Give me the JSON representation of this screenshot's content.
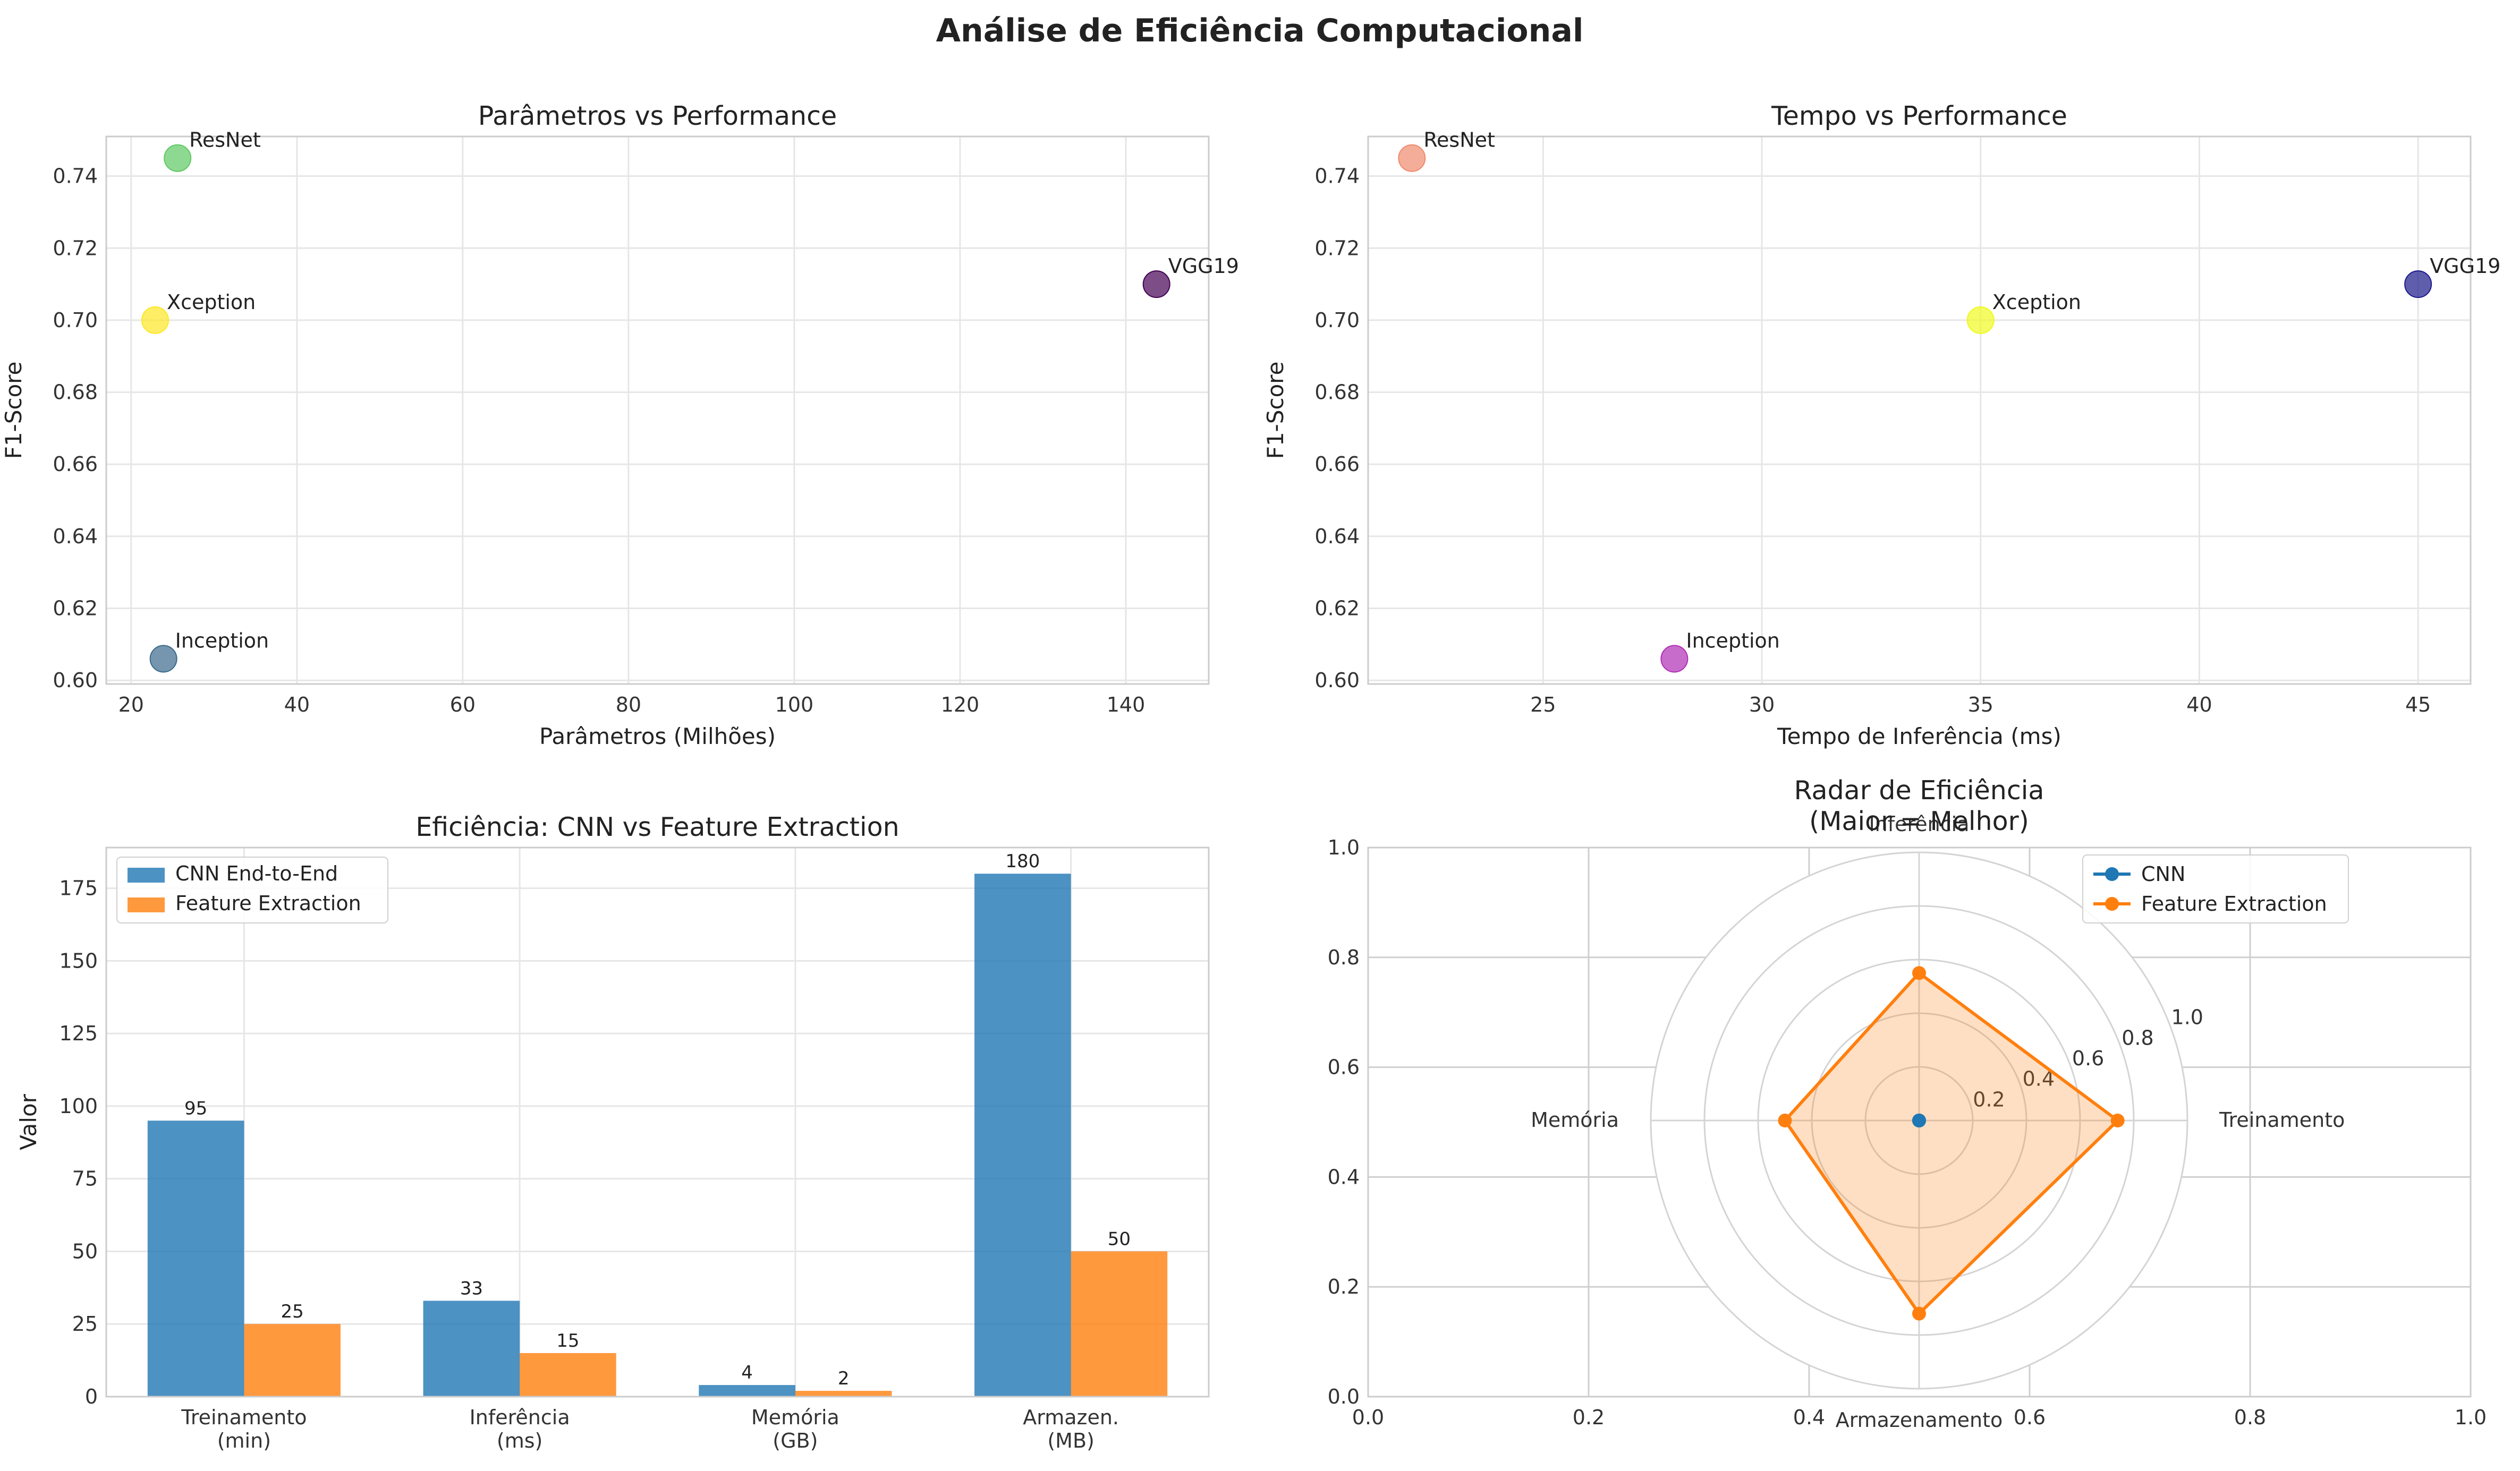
{
  "suptitle": "Análise de Eficiência Computacional",
  "chart_data": [
    {
      "type": "scatter",
      "title": "Parâmetros vs Performance",
      "xlabel": "Parâmetros (Milhões)",
      "ylabel": "F1-Score",
      "xlim": [
        17,
        150
      ],
      "ylim": [
        0.599,
        0.751
      ],
      "xticks": [
        20,
        40,
        60,
        80,
        100,
        120,
        140
      ],
      "yticks": [
        0.6,
        0.62,
        0.64,
        0.66,
        0.68,
        0.7,
        0.72,
        0.74
      ],
      "grid": true,
      "points": [
        {
          "label": "ResNet",
          "x": 25.6,
          "y": 0.745,
          "color": "#5ec962"
        },
        {
          "label": "Xception",
          "x": 22.9,
          "y": 0.7,
          "color": "#fde725"
        },
        {
          "label": "VGG19",
          "x": 143.7,
          "y": 0.71,
          "color": "#440154"
        },
        {
          "label": "Inception",
          "x": 23.9,
          "y": 0.606,
          "color": "#3b6a8c"
        }
      ]
    },
    {
      "type": "scatter",
      "title": "Tempo vs Performance",
      "xlabel": "Tempo de Inferência (ms)",
      "ylabel": "F1-Score",
      "xlim": [
        21.0,
        46.2
      ],
      "ylim": [
        0.599,
        0.751
      ],
      "xticks": [
        25,
        30,
        35,
        40,
        45
      ],
      "yticks": [
        0.6,
        0.62,
        0.64,
        0.66,
        0.68,
        0.7,
        0.72,
        0.74
      ],
      "grid": true,
      "points": [
        {
          "label": "ResNet",
          "x": 22,
          "y": 0.745,
          "color": "#f08a6c"
        },
        {
          "label": "Xception",
          "x": 35,
          "y": 0.7,
          "color": "#f0f921"
        },
        {
          "label": "VGG19",
          "x": 45,
          "y": 0.71,
          "color": "#1b1a8a"
        },
        {
          "label": "Inception",
          "x": 28,
          "y": 0.606,
          "color": "#b02eb5"
        }
      ]
    },
    {
      "type": "bar",
      "title": "Eficiência: CNN vs Feature Extraction",
      "xlabel": "",
      "ylabel": "Valor",
      "ylim": [
        0,
        189
      ],
      "yticks": [
        0,
        25,
        50,
        75,
        100,
        125,
        150,
        175
      ],
      "categories": [
        "Treinamento\n(min)",
        "Inferência\n(ms)",
        "Memória\n(GB)",
        "Armazen.\n(MB)"
      ],
      "series": [
        {
          "name": "CNN End-to-End",
          "values": [
            95,
            33,
            4,
            180
          ],
          "color": "#1f77b4"
        },
        {
          "name": "Feature Extraction",
          "values": [
            25,
            15,
            2,
            50
          ],
          "color": "#ff7f0e"
        }
      ],
      "legend": "upper-left"
    },
    {
      "type": "radar",
      "title": "Radar de Eficiência\n(Maior = Melhor)",
      "axes": [
        "Treinamento",
        "Inferência",
        "Memória",
        "Armazenamento"
      ],
      "rmax": 1.0,
      "rticks": [
        0.2,
        0.4,
        0.6,
        0.8,
        1.0
      ],
      "series": [
        {
          "name": "CNN",
          "values": [
            0,
            0,
            0,
            0
          ],
          "color": "#1f77b4"
        },
        {
          "name": "Feature Extraction",
          "values": [
            0.74,
            0.55,
            0.5,
            0.72
          ],
          "color": "#ff7f0e"
        }
      ],
      "frame_ticks": {
        "x": [
          0.0,
          0.2,
          0.4,
          0.6,
          0.8,
          1.0
        ],
        "y": [
          0.0,
          0.2,
          0.4,
          0.6,
          0.8,
          1.0
        ]
      },
      "legend": "upper-right"
    }
  ]
}
